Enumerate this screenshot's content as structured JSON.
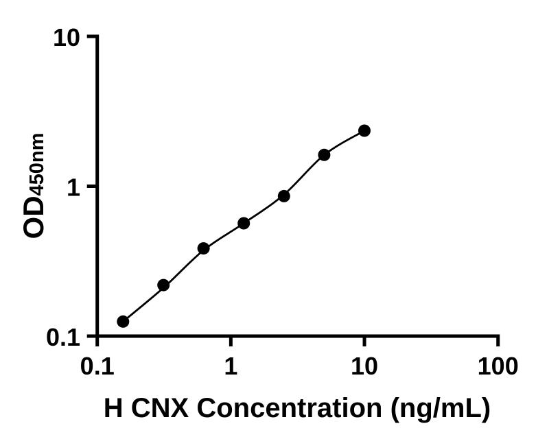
{
  "figure": {
    "background": "#ffffff",
    "foreground": "#000000"
  },
  "chart_data": {
    "type": "scatter",
    "title": "",
    "xlabel": "H CNX Concentration (ng/mL)",
    "ylabel_main": "OD",
    "ylabel_sub": "450nm",
    "xscale": "log",
    "yscale": "log",
    "xlim": [
      0.1,
      100
    ],
    "ylim": [
      0.1,
      10
    ],
    "grid": false,
    "legend": false,
    "marker": "circle",
    "marker_color": "#000000",
    "line_color": "#000000",
    "x_ticks": [
      {
        "value": 0.1,
        "label": "0.1"
      },
      {
        "value": 1,
        "label": "1"
      },
      {
        "value": 10,
        "label": "10"
      },
      {
        "value": 100,
        "label": "100"
      }
    ],
    "y_ticks": [
      {
        "value": 0.1,
        "label": "0.1"
      },
      {
        "value": 1,
        "label": "1"
      },
      {
        "value": 10,
        "label": "10"
      }
    ],
    "points": [
      {
        "x": 0.156,
        "y": 0.125
      },
      {
        "x": 0.313,
        "y": 0.219
      },
      {
        "x": 0.625,
        "y": 0.385
      },
      {
        "x": 1.25,
        "y": 0.566
      },
      {
        "x": 2.5,
        "y": 0.859
      },
      {
        "x": 5,
        "y": 1.618
      },
      {
        "x": 10,
        "y": 2.349
      }
    ],
    "fit_curve": [
      {
        "x": 0.156,
        "y": 0.125
      },
      {
        "x": 0.313,
        "y": 0.21
      },
      {
        "x": 0.625,
        "y": 0.374
      },
      {
        "x": 1.25,
        "y": 0.566
      },
      {
        "x": 2.5,
        "y": 0.879
      },
      {
        "x": 5,
        "y": 1.618
      },
      {
        "x": 10,
        "y": 2.349
      }
    ]
  }
}
